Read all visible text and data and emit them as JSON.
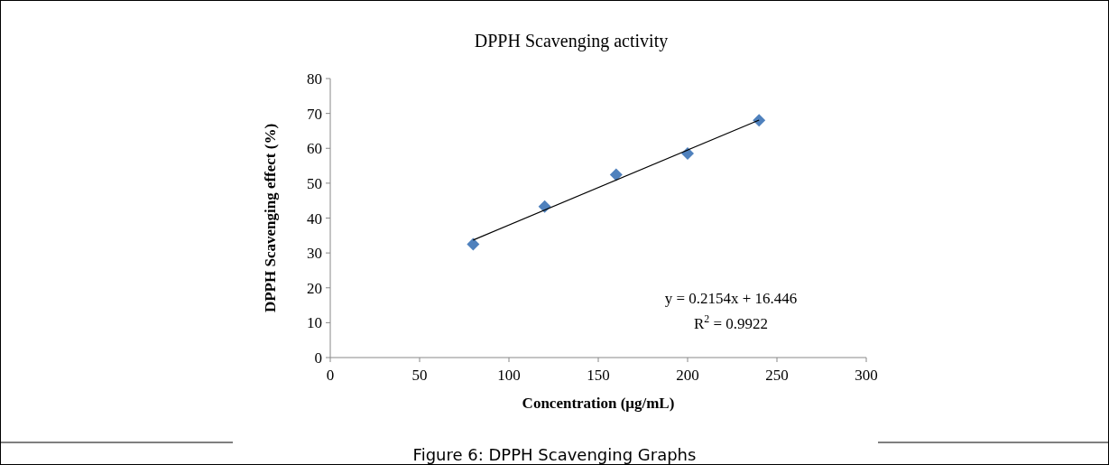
{
  "chart_data": {
    "type": "scatter",
    "title": "DPPH Scavenging activity",
    "xlabel": "Concentration (μg/mL)",
    "ylabel": "DPPH Scavenging effect (%)",
    "x": [
      80,
      120,
      160,
      200,
      240
    ],
    "series": [
      {
        "color": "#4f81bd",
        "values": [
          32.5,
          43.3,
          52.4,
          58.5,
          68.0
        ],
        "marker": "diamond"
      },
      {
        "type": "line",
        "color": "#000000",
        "x": [
          80,
          240
        ],
        "values": [
          33.7,
          68.1
        ],
        "marker": "none"
      }
    ],
    "xlim": [
      0,
      300
    ],
    "xticks": [
      0,
      50,
      100,
      150,
      200,
      250,
      300
    ],
    "ylim": [
      0,
      80
    ],
    "yticks": [
      0,
      10,
      20,
      30,
      40,
      50,
      60,
      70,
      80
    ],
    "grid": false,
    "annotations": [
      "y = 0.2154x + 16.446",
      "R$^{2}$ = 0.9922",
      "Figure 6: DPPH Scavenging Graphs"
    ]
  }
}
